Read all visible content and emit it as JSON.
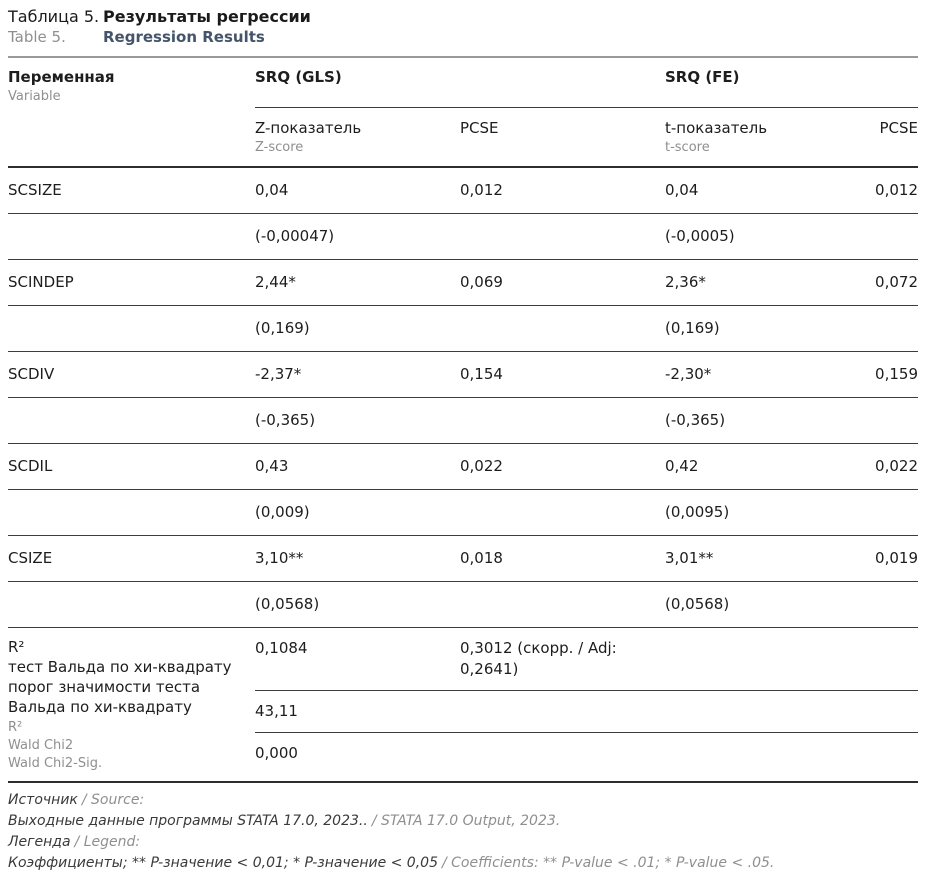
{
  "title": {
    "ru_prefix": "Таблица 5.",
    "ru_title": "Результаты регрессии",
    "en_prefix": "Table 5.",
    "en_title": "Regression Results"
  },
  "table": {
    "header": {
      "variable_ru": "Переменная",
      "variable_en": "Variable",
      "group_gls": "SRQ (GLS)",
      "group_fe": "SRQ (FE)",
      "z_ru": "Z-показатель",
      "z_en": "Z-score",
      "pcse_gls": "PCSE",
      "t_ru": "t-показатель",
      "t_en": "t-score",
      "pcse_fe": "PCSE"
    },
    "rows": [
      {
        "variable": "SCSIZE",
        "gls_z": "0,04",
        "gls_pcse": "0,012",
        "fe_t": "0,04",
        "fe_pcse": "0,012",
        "gls_se": "(-0,00047)",
        "fe_se": "(-0,0005)"
      },
      {
        "variable": "SCINDEP",
        "gls_z": "2,44*",
        "gls_pcse": "0,069",
        "fe_t": "2,36*",
        "fe_pcse": "0,072",
        "gls_se": "(0,169)",
        "fe_se": "(0,169)"
      },
      {
        "variable": "SCDIV",
        "gls_z": "-2,37*",
        "gls_pcse": "0,154",
        "fe_t": "-2,30*",
        "fe_pcse": "0,159",
        "gls_se": "(-0,365)",
        "fe_se": "(-0,365)"
      },
      {
        "variable": "SCDIL",
        "gls_z": "0,43",
        "gls_pcse": "0,022",
        "fe_t": "0,42",
        "fe_pcse": "0,022",
        "gls_se": "(0,009)",
        "fe_se": "(0,0095)"
      },
      {
        "variable": "CSIZE",
        "gls_z": "3,10**",
        "gls_pcse": "0,018",
        "fe_t": "3,01**",
        "fe_pcse": "0,019",
        "gls_se": "(0,0568)",
        "fe_se": "(0,0568)"
      }
    ],
    "summary": {
      "label_ru": [
        "R²",
        "тест Вальда по хи-квадрату",
        "порог значимости теста Вальда по хи-квадрату"
      ],
      "label_en": [
        "R²",
        "Wald Chi2",
        "Wald Chi2-Sig."
      ],
      "r2": "0,1084",
      "r2_adj": "0,3012 (скорр. / Adj: 0,2641)",
      "wald_chi2": "43,11",
      "wald_sig": "0,000"
    }
  },
  "footer": {
    "source_label_ru": "Источник",
    "source_label_en": "/ Source:",
    "source_ru": "Выходные данные программы STATA 17.0, 2023..",
    "source_en": "/ STATA 17.0 Output, 2023.",
    "legend_label_ru": "Легенда",
    "legend_label_en": "/ Legend:",
    "legend_ru": "Коэффициенты; ** P-значение < 0,01; * P-значение < 0,05",
    "legend_en": "/ Coefficients: ** P-value < .01; * P-value < .05."
  }
}
